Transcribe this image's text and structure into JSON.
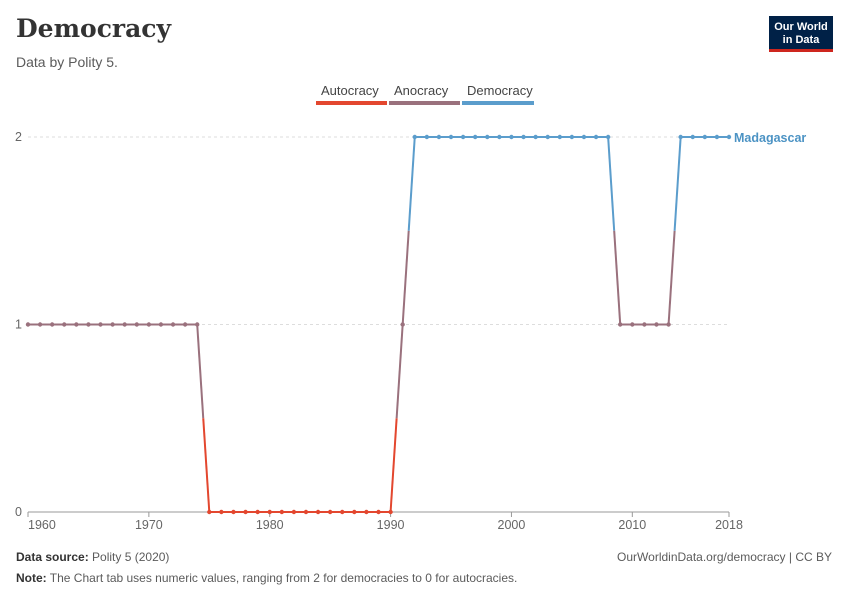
{
  "header": {
    "title": "Democracy",
    "subtitle": "Data by Polity 5.",
    "logo_line1": "Our World",
    "logo_line2": "in Data"
  },
  "footer": {
    "source_label": "Data source:",
    "source_value": "Polity 5 (2020)",
    "url": "OurWorldinData.org/democracy | CC BY",
    "note_label": "Note:",
    "note_value": "The Chart tab uses numeric values, ranging from 2 for democracies to 0 for autocracies."
  },
  "colors": {
    "autocracy": "#e3472f",
    "anocracy": "#9a717d",
    "democracy": "#5b9dcc"
  },
  "chart_data": {
    "type": "line",
    "title": "Democracy",
    "entity": "Madagascar",
    "xlim": [
      1960,
      2018
    ],
    "ylim": [
      0,
      2
    ],
    "x_ticks": [
      "1960",
      "1970",
      "1980",
      "1990",
      "2000",
      "2010",
      "2018"
    ],
    "y_ticks": [
      "0",
      "1",
      "2"
    ],
    "legend": [
      "Autocracy",
      "Anocracy",
      "Democracy"
    ],
    "x": [
      1960,
      1961,
      1962,
      1963,
      1964,
      1965,
      1966,
      1967,
      1968,
      1969,
      1970,
      1971,
      1972,
      1973,
      1974,
      1975,
      1976,
      1977,
      1978,
      1979,
      1980,
      1981,
      1982,
      1983,
      1984,
      1985,
      1986,
      1987,
      1988,
      1989,
      1990,
      1991,
      1992,
      1993,
      1994,
      1995,
      1996,
      1997,
      1998,
      1999,
      2000,
      2001,
      2002,
      2003,
      2004,
      2005,
      2006,
      2007,
      2008,
      2009,
      2010,
      2011,
      2012,
      2013,
      2014,
      2015,
      2016,
      2017,
      2018
    ],
    "values": [
      1,
      1,
      1,
      1,
      1,
      1,
      1,
      1,
      1,
      1,
      1,
      1,
      1,
      1,
      1,
      0,
      0,
      0,
      0,
      0,
      0,
      0,
      0,
      0,
      0,
      0,
      0,
      0,
      0,
      0,
      0,
      1,
      2,
      2,
      2,
      2,
      2,
      2,
      2,
      2,
      2,
      2,
      2,
      2,
      2,
      2,
      2,
      2,
      2,
      1,
      1,
      1,
      1,
      1,
      2,
      2,
      2,
      2,
      2
    ]
  }
}
